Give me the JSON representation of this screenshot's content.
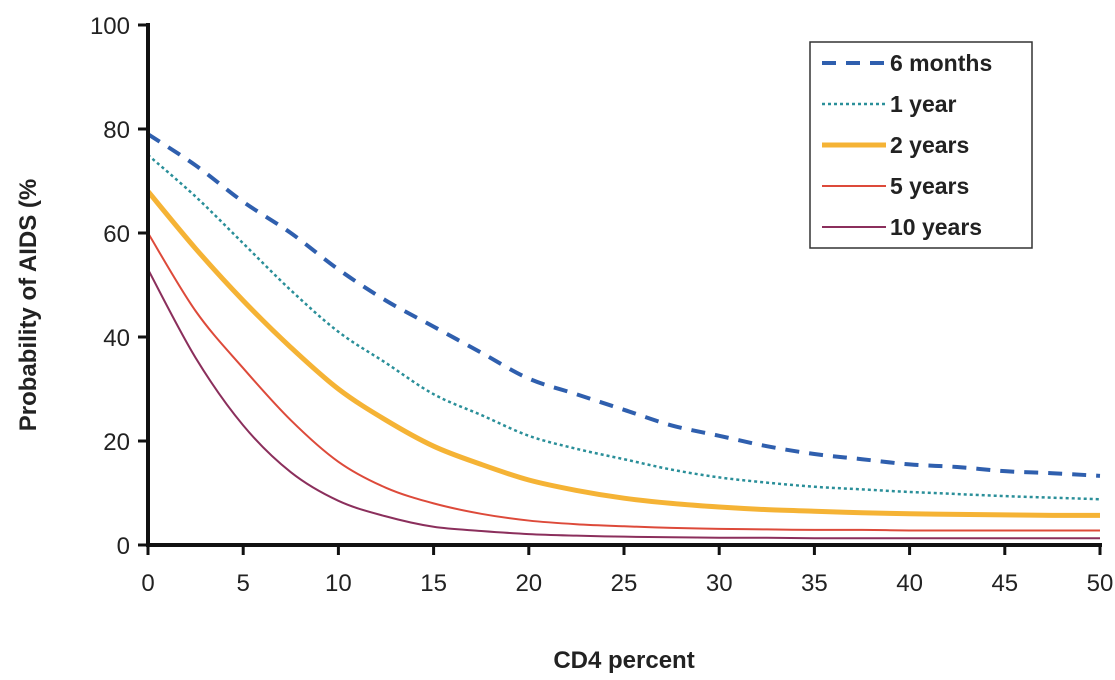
{
  "chart_data": {
    "type": "line",
    "title": "",
    "xlabel": "CD4 percent",
    "ylabel": "Probability of AIDS (%",
    "xlim": [
      0,
      50
    ],
    "ylim": [
      0,
      100
    ],
    "x_ticks": [
      0,
      5,
      10,
      15,
      20,
      25,
      30,
      35,
      40,
      45,
      50
    ],
    "y_ticks": [
      0,
      20,
      40,
      60,
      80,
      100
    ],
    "grid": false,
    "legend_position": "top-right",
    "x": [
      0,
      2.5,
      5,
      7.5,
      10,
      12.5,
      15,
      17.5,
      20,
      22.5,
      25,
      27.5,
      30,
      32.5,
      35,
      37.5,
      40,
      42.5,
      45,
      47.5,
      50
    ],
    "series": [
      {
        "name": "6 months",
        "color": "#2f5fae",
        "style": "dashed",
        "values": [
          79,
          73,
          66,
          60,
          53,
          47,
          42,
          37,
          32,
          29,
          26,
          23,
          21,
          19,
          17.5,
          16.5,
          15.5,
          15,
          14.2,
          13.8,
          13.3
        ]
      },
      {
        "name": "1 year",
        "color": "#2a8f99",
        "style": "dotted",
        "values": [
          75,
          67,
          58,
          49,
          41,
          35,
          29,
          25,
          21,
          18.5,
          16.5,
          14.5,
          13,
          12,
          11.2,
          10.7,
          10.2,
          9.8,
          9.4,
          9.1,
          8.8
        ]
      },
      {
        "name": "2 years",
        "color": "#f5b335",
        "style": "solid",
        "values": [
          68,
          57,
          47,
          38,
          30,
          24,
          19,
          15.5,
          12.5,
          10.5,
          9,
          8,
          7.3,
          6.8,
          6.5,
          6.2,
          6,
          5.9,
          5.8,
          5.7,
          5.7
        ]
      },
      {
        "name": "5 years",
        "color": "#dd4a3a",
        "style": "solid",
        "values": [
          60,
          45,
          34,
          24,
          16,
          11,
          8,
          6,
          4.7,
          4,
          3.6,
          3.3,
          3.1,
          3,
          2.9,
          2.9,
          2.8,
          2.8,
          2.8,
          2.8,
          2.8
        ]
      },
      {
        "name": "10 years",
        "color": "#8b2f5c",
        "style": "solid",
        "values": [
          53,
          36,
          23,
          14,
          8.5,
          5.5,
          3.5,
          2.7,
          2.1,
          1.8,
          1.6,
          1.5,
          1.4,
          1.4,
          1.3,
          1.3,
          1.3,
          1.3,
          1.3,
          1.3,
          1.3
        ]
      }
    ]
  }
}
